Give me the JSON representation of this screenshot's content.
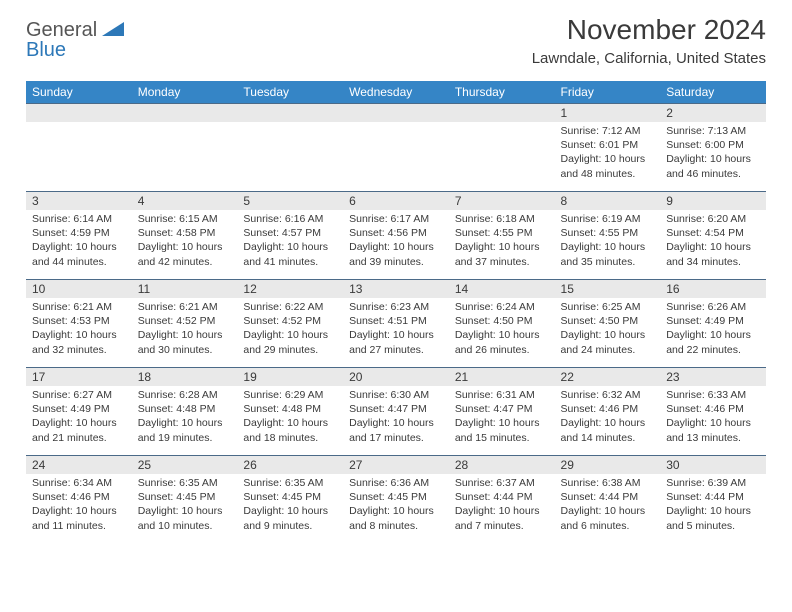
{
  "brand": {
    "line1": "General",
    "line2": "Blue",
    "color1": "#555555",
    "color2": "#2d78b8"
  },
  "title": "November 2024",
  "location": "Lawndale, California, United States",
  "colors": {
    "header_bg": "#3585c6",
    "header_text": "#ffffff",
    "daynum_bg": "#e9e9e9",
    "cell_border": "#4b6a88",
    "text": "#3a3a3a"
  },
  "fonts": {
    "title_size": 28,
    "location_size": 15,
    "th_size": 12,
    "daynum_size": 12,
    "body_size": 10.5
  },
  "day_headers": [
    "Sunday",
    "Monday",
    "Tuesday",
    "Wednesday",
    "Thursday",
    "Friday",
    "Saturday"
  ],
  "weeks": [
    {
      "days": [
        null,
        null,
        null,
        null,
        null,
        {
          "n": "1",
          "sunrise": "Sunrise: 7:12 AM",
          "sunset": "Sunset: 6:01 PM",
          "daylight": "Daylight: 10 hours and 48 minutes."
        },
        {
          "n": "2",
          "sunrise": "Sunrise: 7:13 AM",
          "sunset": "Sunset: 6:00 PM",
          "daylight": "Daylight: 10 hours and 46 minutes."
        }
      ]
    },
    {
      "days": [
        {
          "n": "3",
          "sunrise": "Sunrise: 6:14 AM",
          "sunset": "Sunset: 4:59 PM",
          "daylight": "Daylight: 10 hours and 44 minutes."
        },
        {
          "n": "4",
          "sunrise": "Sunrise: 6:15 AM",
          "sunset": "Sunset: 4:58 PM",
          "daylight": "Daylight: 10 hours and 42 minutes."
        },
        {
          "n": "5",
          "sunrise": "Sunrise: 6:16 AM",
          "sunset": "Sunset: 4:57 PM",
          "daylight": "Daylight: 10 hours and 41 minutes."
        },
        {
          "n": "6",
          "sunrise": "Sunrise: 6:17 AM",
          "sunset": "Sunset: 4:56 PM",
          "daylight": "Daylight: 10 hours and 39 minutes."
        },
        {
          "n": "7",
          "sunrise": "Sunrise: 6:18 AM",
          "sunset": "Sunset: 4:55 PM",
          "daylight": "Daylight: 10 hours and 37 minutes."
        },
        {
          "n": "8",
          "sunrise": "Sunrise: 6:19 AM",
          "sunset": "Sunset: 4:55 PM",
          "daylight": "Daylight: 10 hours and 35 minutes."
        },
        {
          "n": "9",
          "sunrise": "Sunrise: 6:20 AM",
          "sunset": "Sunset: 4:54 PM",
          "daylight": "Daylight: 10 hours and 34 minutes."
        }
      ]
    },
    {
      "days": [
        {
          "n": "10",
          "sunrise": "Sunrise: 6:21 AM",
          "sunset": "Sunset: 4:53 PM",
          "daylight": "Daylight: 10 hours and 32 minutes."
        },
        {
          "n": "11",
          "sunrise": "Sunrise: 6:21 AM",
          "sunset": "Sunset: 4:52 PM",
          "daylight": "Daylight: 10 hours and 30 minutes."
        },
        {
          "n": "12",
          "sunrise": "Sunrise: 6:22 AM",
          "sunset": "Sunset: 4:52 PM",
          "daylight": "Daylight: 10 hours and 29 minutes."
        },
        {
          "n": "13",
          "sunrise": "Sunrise: 6:23 AM",
          "sunset": "Sunset: 4:51 PM",
          "daylight": "Daylight: 10 hours and 27 minutes."
        },
        {
          "n": "14",
          "sunrise": "Sunrise: 6:24 AM",
          "sunset": "Sunset: 4:50 PM",
          "daylight": "Daylight: 10 hours and 26 minutes."
        },
        {
          "n": "15",
          "sunrise": "Sunrise: 6:25 AM",
          "sunset": "Sunset: 4:50 PM",
          "daylight": "Daylight: 10 hours and 24 minutes."
        },
        {
          "n": "16",
          "sunrise": "Sunrise: 6:26 AM",
          "sunset": "Sunset: 4:49 PM",
          "daylight": "Daylight: 10 hours and 22 minutes."
        }
      ]
    },
    {
      "days": [
        {
          "n": "17",
          "sunrise": "Sunrise: 6:27 AM",
          "sunset": "Sunset: 4:49 PM",
          "daylight": "Daylight: 10 hours and 21 minutes."
        },
        {
          "n": "18",
          "sunrise": "Sunrise: 6:28 AM",
          "sunset": "Sunset: 4:48 PM",
          "daylight": "Daylight: 10 hours and 19 minutes."
        },
        {
          "n": "19",
          "sunrise": "Sunrise: 6:29 AM",
          "sunset": "Sunset: 4:48 PM",
          "daylight": "Daylight: 10 hours and 18 minutes."
        },
        {
          "n": "20",
          "sunrise": "Sunrise: 6:30 AM",
          "sunset": "Sunset: 4:47 PM",
          "daylight": "Daylight: 10 hours and 17 minutes."
        },
        {
          "n": "21",
          "sunrise": "Sunrise: 6:31 AM",
          "sunset": "Sunset: 4:47 PM",
          "daylight": "Daylight: 10 hours and 15 minutes."
        },
        {
          "n": "22",
          "sunrise": "Sunrise: 6:32 AM",
          "sunset": "Sunset: 4:46 PM",
          "daylight": "Daylight: 10 hours and 14 minutes."
        },
        {
          "n": "23",
          "sunrise": "Sunrise: 6:33 AM",
          "sunset": "Sunset: 4:46 PM",
          "daylight": "Daylight: 10 hours and 13 minutes."
        }
      ]
    },
    {
      "days": [
        {
          "n": "24",
          "sunrise": "Sunrise: 6:34 AM",
          "sunset": "Sunset: 4:46 PM",
          "daylight": "Daylight: 10 hours and 11 minutes."
        },
        {
          "n": "25",
          "sunrise": "Sunrise: 6:35 AM",
          "sunset": "Sunset: 4:45 PM",
          "daylight": "Daylight: 10 hours and 10 minutes."
        },
        {
          "n": "26",
          "sunrise": "Sunrise: 6:35 AM",
          "sunset": "Sunset: 4:45 PM",
          "daylight": "Daylight: 10 hours and 9 minutes."
        },
        {
          "n": "27",
          "sunrise": "Sunrise: 6:36 AM",
          "sunset": "Sunset: 4:45 PM",
          "daylight": "Daylight: 10 hours and 8 minutes."
        },
        {
          "n": "28",
          "sunrise": "Sunrise: 6:37 AM",
          "sunset": "Sunset: 4:44 PM",
          "daylight": "Daylight: 10 hours and 7 minutes."
        },
        {
          "n": "29",
          "sunrise": "Sunrise: 6:38 AM",
          "sunset": "Sunset: 4:44 PM",
          "daylight": "Daylight: 10 hours and 6 minutes."
        },
        {
          "n": "30",
          "sunrise": "Sunrise: 6:39 AM",
          "sunset": "Sunset: 4:44 PM",
          "daylight": "Daylight: 10 hours and 5 minutes."
        }
      ]
    }
  ]
}
